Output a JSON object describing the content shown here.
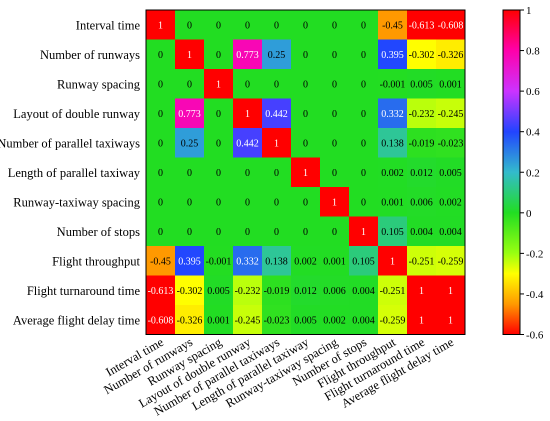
{
  "chart_data": {
    "type": "heatmap",
    "title": "",
    "xlabel": "",
    "ylabel": "",
    "variables": [
      "Interval time",
      "Number of runways",
      "Runway spacing",
      "Layout of double runway",
      "Number of parallel taxiways",
      "Length of parallel taxiway",
      "Runway-taxiway spacing",
      "Number of stops",
      "Flight throughput",
      "Flight turnaround time",
      "Average flight delay time"
    ],
    "matrix": [
      [
        1,
        0,
        0,
        0,
        0,
        0,
        0,
        0,
        -0.45,
        -0.613,
        -0.608
      ],
      [
        0,
        1,
        0,
        0.773,
        0.25,
        0,
        0,
        0,
        0.395,
        -0.302,
        -0.326
      ],
      [
        0,
        0,
        1,
        0,
        0,
        0,
        0,
        0,
        -0.001,
        0.005,
        0.001
      ],
      [
        0,
        0.773,
        0,
        1,
        0.442,
        0,
        0,
        0,
        0.332,
        -0.232,
        -0.245
      ],
      [
        0,
        0.25,
        0,
        0.442,
        1,
        0,
        0,
        0,
        0.138,
        -0.019,
        -0.023
      ],
      [
        0,
        0,
        0,
        0,
        0,
        1,
        0,
        0,
        0.002,
        0.012,
        0.005
      ],
      [
        0,
        0,
        0,
        0,
        0,
        0,
        1,
        0,
        0.001,
        0.006,
        0.002
      ],
      [
        0,
        0,
        0,
        0,
        0,
        0,
        0,
        1,
        0.105,
        0.004,
        0.004
      ],
      [
        -0.45,
        0.395,
        -0.001,
        0.332,
        0.138,
        0.002,
        0.001,
        0.105,
        1,
        -0.251,
        -0.259
      ],
      [
        -0.613,
        -0.302,
        0.005,
        -0.232,
        -0.019,
        0.012,
        0.006,
        0.004,
        -0.251,
        1,
        1
      ],
      [
        -0.608,
        -0.326,
        0.001,
        -0.245,
        -0.023,
        0.005,
        0.002,
        0.004,
        -0.259,
        1,
        1
      ]
    ],
    "colorbar": {
      "min": -0.6,
      "max": 1,
      "ticks": [
        1,
        0.8,
        0.6,
        0.4,
        0.2,
        0,
        -0.2,
        -0.4,
        -0.6
      ],
      "colors": {
        "pos_1": "#ff0000",
        "pos_0_8": "#ff00aa",
        "pos_0_6": "#cc33ff",
        "pos_0_4": "#2244ff",
        "pos_0_2": "#33bbcc",
        "zero": "#22dd22",
        "neg_0_2": "#99ff11",
        "neg_0_3": "#ffff00",
        "neg_0_45": "#ff9900",
        "neg_0_6": "#ff0000"
      }
    }
  }
}
